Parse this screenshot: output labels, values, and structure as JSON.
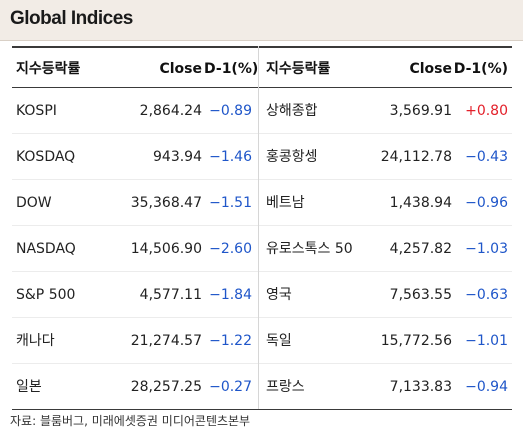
{
  "title": "Global Indices",
  "headers": {
    "name": "지수등락률",
    "close": "Close",
    "change": "D-1(%)"
  },
  "rows": [
    {
      "left": {
        "name": "KOSPI",
        "close": "2,864.24",
        "change": "−0.89",
        "dir": "neg"
      },
      "right": {
        "name": "상해종합",
        "close": "3,569.91",
        "change": "+0.80",
        "dir": "pos"
      }
    },
    {
      "left": {
        "name": "KOSDAQ",
        "close": "943.94",
        "change": "−1.46",
        "dir": "neg"
      },
      "right": {
        "name": "홍콩항셍",
        "close": "24,112.78",
        "change": "−0.43",
        "dir": "neg"
      }
    },
    {
      "left": {
        "name": "DOW",
        "close": "35,368.47",
        "change": "−1.51",
        "dir": "neg"
      },
      "right": {
        "name": "베트남",
        "close": "1,438.94",
        "change": "−0.96",
        "dir": "neg"
      }
    },
    {
      "left": {
        "name": "NASDAQ",
        "close": "14,506.90",
        "change": "−2.60",
        "dir": "neg"
      },
      "right": {
        "name": "유로스톡스 50",
        "close": "4,257.82",
        "change": "−1.03",
        "dir": "neg"
      }
    },
    {
      "left": {
        "name": "S&P 500",
        "close": "4,577.11",
        "change": "−1.84",
        "dir": "neg"
      },
      "right": {
        "name": "영국",
        "close": "7,563.55",
        "change": "−0.63",
        "dir": "neg"
      }
    },
    {
      "left": {
        "name": "캐나다",
        "close": "21,274.57",
        "change": "−1.22",
        "dir": "neg"
      },
      "right": {
        "name": "독일",
        "close": "15,772.56",
        "change": "−1.01",
        "dir": "neg"
      }
    },
    {
      "left": {
        "name": "일본",
        "close": "28,257.25",
        "change": "−0.27",
        "dir": "neg"
      },
      "right": {
        "name": "프랑스",
        "close": "7,133.83",
        "change": "−0.94",
        "dir": "neg"
      }
    }
  ],
  "source": "자료: 블룸버그,  미래에셋증권 미디어콘텐츠본부",
  "colors": {
    "negative": "#1f56c9",
    "positive": "#e3202a",
    "title_bg": "#f2ece6"
  }
}
